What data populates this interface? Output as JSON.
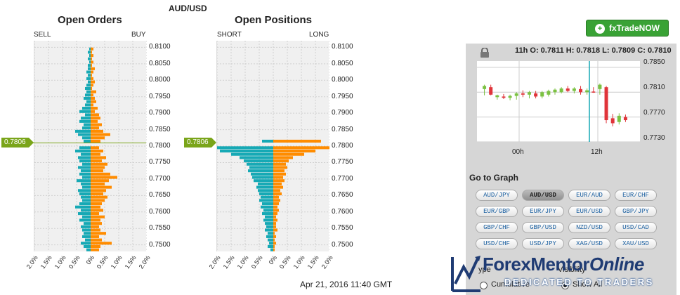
{
  "pair_title": "AUD/USD",
  "open_orders": {
    "title": "Open Orders",
    "left_label": "SELL",
    "right_label": "BUY"
  },
  "open_positions": {
    "title": "Open Positions",
    "left_label": "SHORT",
    "right_label": "LONG"
  },
  "current_price": "0.7806",
  "price_ticks": [
    "0.8100",
    "0.8050",
    "0.8000",
    "0.7950",
    "0.7900",
    "0.7850",
    "0.7800",
    "0.7750",
    "0.7700",
    "0.7650",
    "0.7600",
    "0.7550",
    "0.7500"
  ],
  "x_ticks": [
    "2.0%",
    "1.5%",
    "1.0%",
    "0.5%",
    "0%",
    "0.5%",
    "1.0%",
    "1.5%",
    "2.0%"
  ],
  "timestamp": "Apr 21, 2016 11:40 GMT",
  "colors": {
    "left": "#16a9b5",
    "right": "#ff8c00",
    "price": "#7aa51a"
  },
  "chart_data": [
    {
      "type": "bar",
      "name": "Open Orders",
      "orientation": "horizontal",
      "y_unit": "price",
      "ylim": [
        0.748,
        0.812
      ],
      "x_unit": "percent",
      "xlim": [
        -2.0,
        2.0
      ],
      "prices": [
        0.8095,
        0.8085,
        0.8075,
        0.8065,
        0.8055,
        0.8045,
        0.8035,
        0.8025,
        0.8015,
        0.8005,
        0.7995,
        0.7985,
        0.7975,
        0.7965,
        0.7955,
        0.7945,
        0.7935,
        0.7925,
        0.7915,
        0.7905,
        0.7895,
        0.7885,
        0.7875,
        0.7865,
        0.7855,
        0.7845,
        0.7835,
        0.7825,
        0.7815,
        0.7795,
        0.7785,
        0.7775,
        0.7765,
        0.7755,
        0.7745,
        0.7735,
        0.7725,
        0.7715,
        0.7705,
        0.7695,
        0.7685,
        0.7675,
        0.7665,
        0.7655,
        0.7645,
        0.7635,
        0.7625,
        0.7615,
        0.7605,
        0.7595,
        0.7585,
        0.7575,
        0.7565,
        0.7555,
        0.7545,
        0.7535,
        0.7525,
        0.7515,
        0.7505,
        0.7495,
        0.7485
      ],
      "sell": [
        0.05,
        0.1,
        0.05,
        0.1,
        0.05,
        0.1,
        0.1,
        0.15,
        0.1,
        0.15,
        0.1,
        0.15,
        0.2,
        0.15,
        0.2,
        0.25,
        0.15,
        0.2,
        0.3,
        0.4,
        0.2,
        0.35,
        0.4,
        0.25,
        0.3,
        0.55,
        0.45,
        0.3,
        0.25,
        0.4,
        0.55,
        0.35,
        0.45,
        0.4,
        0.3,
        0.45,
        0.35,
        0.4,
        0.3,
        0.5,
        0.35,
        0.3,
        0.45,
        0.4,
        0.35,
        0.3,
        0.4,
        0.55,
        0.35,
        0.45,
        0.3,
        0.4,
        0.25,
        0.35,
        0.3,
        0.25,
        0.3,
        0.2,
        0.35,
        0.25,
        0.15
      ],
      "buy": [
        0.1,
        0.05,
        0.1,
        0.05,
        0.1,
        0.05,
        0.15,
        0.1,
        0.05,
        0.1,
        0.15,
        0.1,
        0.05,
        0.2,
        0.1,
        0.15,
        0.2,
        0.1,
        0.25,
        0.15,
        0.3,
        0.35,
        0.25,
        0.4,
        0.3,
        0.45,
        0.7,
        0.5,
        0.35,
        0.3,
        0.45,
        0.35,
        0.55,
        0.4,
        0.6,
        0.5,
        0.45,
        0.7,
        0.95,
        0.65,
        0.5,
        0.75,
        0.55,
        0.45,
        0.6,
        0.5,
        0.4,
        0.35,
        0.45,
        0.3,
        0.5,
        0.35,
        0.4,
        0.3,
        0.35,
        0.55,
        0.3,
        0.4,
        0.75,
        0.35,
        0.3
      ]
    },
    {
      "type": "bar",
      "name": "Open Positions",
      "orientation": "horizontal",
      "y_unit": "price",
      "ylim": [
        0.748,
        0.812
      ],
      "x_unit": "percent",
      "xlim": [
        -2.0,
        2.0
      ],
      "prices": [
        0.8015,
        0.8005,
        0.7995,
        0.7985,
        0.7975,
        0.7965,
        0.7955,
        0.7945,
        0.7935,
        0.7925,
        0.7915,
        0.7905,
        0.7895,
        0.7885,
        0.7875,
        0.7865,
        0.7855,
        0.7845,
        0.7835,
        0.7825,
        0.7815,
        0.7795,
        0.7785,
        0.7775,
        0.7765,
        0.7755,
        0.7745,
        0.7735,
        0.7725,
        0.7715,
        0.7705,
        0.7695,
        0.7685,
        0.7675,
        0.7665,
        0.7655,
        0.7645,
        0.7635,
        0.7625,
        0.7615,
        0.7605,
        0.7595,
        0.7585,
        0.7575,
        0.7565,
        0.7555,
        0.7545,
        0.7535,
        0.7525,
        0.7515,
        0.7505,
        0.7495,
        0.7485
      ],
      "short": [
        0,
        0,
        0,
        0,
        0,
        0,
        0,
        0,
        0,
        0,
        0,
        0,
        0,
        0,
        0,
        0,
        0,
        0,
        0,
        0,
        0.4,
        2.0,
        1.9,
        1.5,
        1.2,
        1.05,
        0.95,
        0.85,
        0.9,
        0.8,
        0.75,
        0.7,
        0.55,
        0.6,
        0.55,
        0.5,
        0.45,
        0.5,
        0.4,
        0.45,
        0.35,
        0.4,
        0.3,
        0.35,
        0.3,
        0.25,
        0.3,
        0.2,
        0.25,
        0.2,
        0.15,
        0.2,
        0.1
      ],
      "long": [
        0,
        0,
        0,
        0,
        0,
        0,
        0,
        0,
        0,
        0,
        0,
        0,
        0,
        0,
        0,
        0,
        0,
        0,
        0,
        0,
        1.7,
        2.0,
        1.5,
        1.1,
        0.7,
        0.55,
        0.45,
        0.5,
        0.4,
        0.45,
        0.35,
        0.4,
        0.3,
        0.35,
        0.25,
        0.3,
        0.2,
        0.25,
        0.2,
        0.15,
        0.2,
        0.15,
        0.1,
        0.15,
        0.1,
        0.1,
        0.15,
        0.05,
        0.1,
        0.05,
        0.1,
        0.05,
        0.05
      ]
    },
    {
      "type": "candlestick",
      "name": "AUD/USD",
      "ylim": [
        0.773,
        0.786
      ],
      "y_ticks": [
        "0.7850",
        "0.7810",
        "0.7770",
        "0.7730"
      ],
      "x_ticks": [
        "00h",
        "12h"
      ],
      "candles": [
        {
          "o": 0.7815,
          "h": 0.7822,
          "l": 0.7805,
          "c": 0.782
        },
        {
          "o": 0.7818,
          "h": 0.7822,
          "l": 0.7805,
          "c": 0.7806
        },
        {
          "o": 0.7802,
          "h": 0.7806,
          "l": 0.7798,
          "c": 0.7805
        },
        {
          "o": 0.7803,
          "h": 0.7807,
          "l": 0.7799,
          "c": 0.7801
        },
        {
          "o": 0.7801,
          "h": 0.7806,
          "l": 0.7797,
          "c": 0.7804
        },
        {
          "o": 0.7804,
          "h": 0.781,
          "l": 0.7798,
          "c": 0.7808
        },
        {
          "o": 0.7808,
          "h": 0.7813,
          "l": 0.7802,
          "c": 0.7806
        },
        {
          "o": 0.7806,
          "h": 0.7812,
          "l": 0.78,
          "c": 0.781
        },
        {
          "o": 0.7808,
          "h": 0.7812,
          "l": 0.78,
          "c": 0.7803
        },
        {
          "o": 0.7803,
          "h": 0.7812,
          "l": 0.78,
          "c": 0.781
        },
        {
          "o": 0.7806,
          "h": 0.7814,
          "l": 0.7803,
          "c": 0.7812
        },
        {
          "o": 0.781,
          "h": 0.7816,
          "l": 0.7806,
          "c": 0.7814
        },
        {
          "o": 0.781,
          "h": 0.7818,
          "l": 0.7808,
          "c": 0.7816
        },
        {
          "o": 0.7816,
          "h": 0.782,
          "l": 0.781,
          "c": 0.7812
        },
        {
          "o": 0.7812,
          "h": 0.7818,
          "l": 0.7808,
          "c": 0.7816
        },
        {
          "o": 0.7815,
          "h": 0.782,
          "l": 0.7806,
          "c": 0.781
        },
        {
          "o": 0.781,
          "h": 0.7816,
          "l": 0.7806,
          "c": 0.7813
        },
        {
          "o": 0.7811,
          "h": 0.7818,
          "l": 0.7809,
          "c": 0.781
        },
        {
          "o": 0.7815,
          "h": 0.7824,
          "l": 0.7806,
          "c": 0.7822
        },
        {
          "o": 0.7818,
          "h": 0.782,
          "l": 0.776,
          "c": 0.7765
        },
        {
          "o": 0.7768,
          "h": 0.7775,
          "l": 0.7755,
          "c": 0.776
        },
        {
          "o": 0.7762,
          "h": 0.7776,
          "l": 0.7758,
          "c": 0.7772
        },
        {
          "o": 0.777,
          "h": 0.7774,
          "l": 0.7762,
          "c": 0.7765
        }
      ]
    }
  ],
  "trade_button": "fxTradeNOW",
  "ohlc": "11h O: 0.7811 H: 0.7818 L: 0.7809 C: 0.7810",
  "mini_y_ticks": [
    "0.7850",
    "0.7810",
    "0.7770",
    "0.7730"
  ],
  "mini_x_ticks": [
    "00h",
    "12h"
  ],
  "goto_label": "Go to Graph",
  "pairs": [
    "AUD/JPY",
    "AUD/USD",
    "EUR/AUD",
    "EUR/CHF",
    "EUR/GBP",
    "EUR/JPY",
    "EUR/USD",
    "GBP/JPY",
    "GBP/CHF",
    "GBP/USD",
    "NZD/USD",
    "USD/CAD",
    "USD/CHF",
    "USD/JPY",
    "XAG/USD",
    "XAU/USD"
  ],
  "active_pair": "AUD/USD",
  "type_label": "ype",
  "type_option": "Cumulative",
  "visibility_label": "Visibility",
  "visibility_option": "Show All",
  "logo": {
    "brand_a": "Forex",
    "brand_b": "Mentor",
    "brand_c": "Online",
    "tagline": "DEDICATED TO TRADERS"
  }
}
